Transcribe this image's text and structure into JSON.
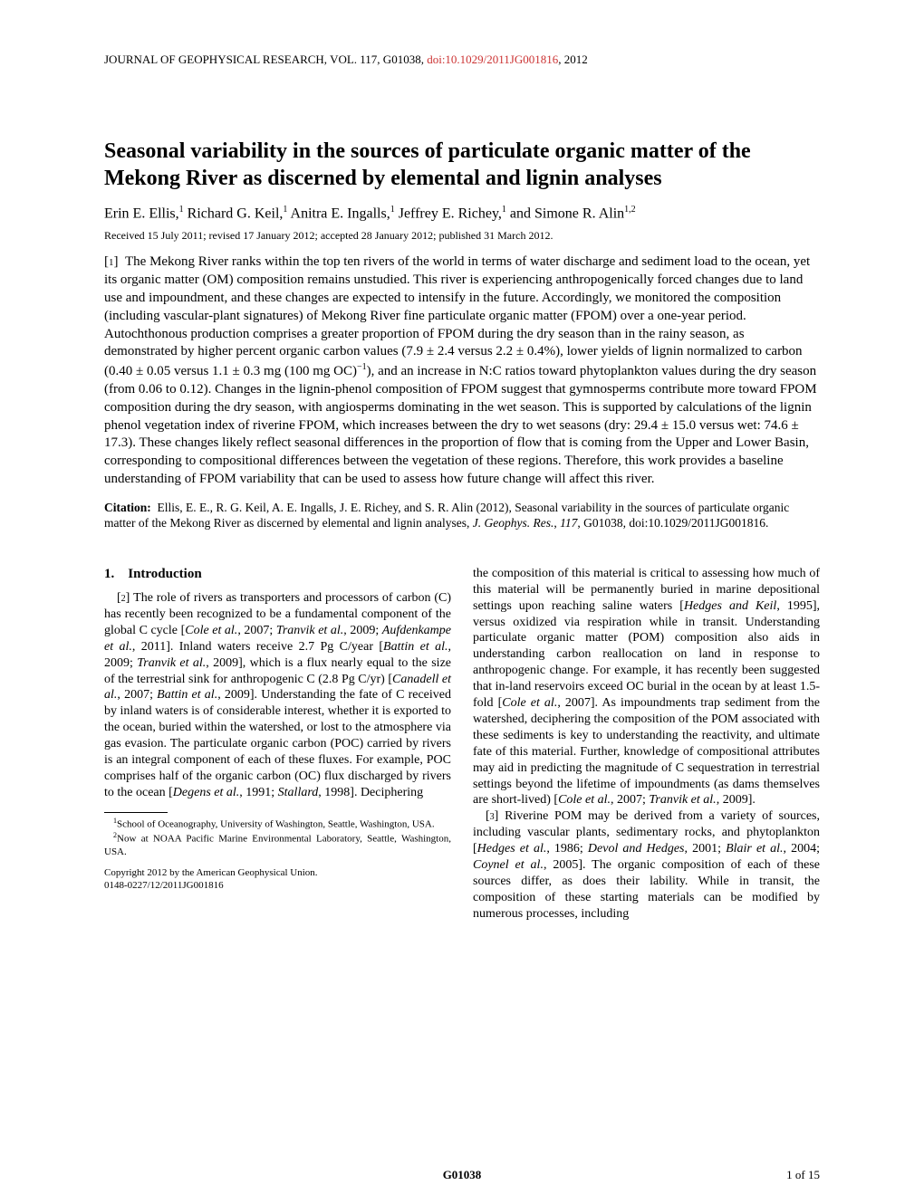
{
  "header": {
    "journal": "JOURNAL OF GEOPHYSICAL RESEARCH, VOL. 117, G01038, ",
    "doi": "doi:10.1029/2011JG001816",
    "year": ", 2012"
  },
  "title": "Seasonal variability in the sources of particulate organic matter of the Mekong River as discerned by elemental and lignin analyses",
  "authors_html": "Erin E. Ellis,<span class='sup'>1</span> Richard G. Keil,<span class='sup'>1</span> Anitra E. Ingalls,<span class='sup'>1</span> Jeffrey E. Richey,<span class='sup'>1</span> and Simone R. Alin<span class='sup'>1,2</span>",
  "dates": "Received 15 July 2011; revised 17 January 2012; accepted 28 January 2012; published 31 March 2012.",
  "abstract_html": "[<span class='para-num'>1</span>]&nbsp;&nbsp;The Mekong River ranks within the top ten rivers of the world in terms of water discharge and sediment load to the ocean, yet its organic matter (OM) composition remains unstudied. This river is experiencing anthropogenically forced changes due to land use and impoundment, and these changes are expected to intensify in the future. Accordingly, we monitored the composition (including vascular-plant signatures) of Mekong River fine particulate organic matter (FPOM) over a one-year period. Autochthonous production comprises a greater proportion of FPOM during the dry season than in the rainy season, as demonstrated by higher percent organic carbon values (7.9 ± 2.4 versus 2.2 ± 0.4%), lower yields of lignin normalized to carbon (0.40 ± 0.05 versus 1.1 ± 0.3 mg (100 mg OC)<span class='sup'>−1</span>), and an increase in N:C ratios toward phytoplankton values during the dry season (from 0.06 to 0.12). Changes in the lignin-phenol composition of FPOM suggest that gymnosperms contribute more toward FPOM composition during the dry season, with angiosperms dominating in the wet season. This is supported by calculations of the lignin phenol vegetation index of riverine FPOM, which increases between the dry to wet seasons (dry: 29.4 ± 15.0 versus wet: 74.6 ± 17.3). These changes likely reflect seasonal differences in the proportion of flow that is coming from the Upper and Lower Basin, corresponding to compositional differences between the vegetation of these regions. Therefore, this work provides a baseline understanding of FPOM variability that can be used to assess how future change will affect this river.",
  "citation": {
    "label": "Citation:",
    "text_html": "&nbsp;&nbsp;Ellis, E. E., R. G. Keil, A. E. Ingalls, J. E. Richey, and S. R. Alin (2012), Seasonal variability in the sources of particulate organic matter of the Mekong River as discerned by elemental and lignin analyses, <span class='jname'>J. Geophys. Res.</span>, <span class='vol'>117</span>, G01038, doi:10.1029/2011JG001816."
  },
  "left_column": {
    "heading": "1. Introduction",
    "para_html": "[<span class='pnum'>2</span>]&nbsp;The role of rivers as transporters and processors of carbon (C) has recently been recognized to be a fundamental component of the global C cycle [<span class='ital'>Cole et al.</span>, 2007; <span class='ital'>Tranvik et al.</span>, 2009; <span class='ital'>Aufdenkampe et al.</span>, 2011]. Inland waters receive 2.7 Pg C/year [<span class='ital'>Battin et al.</span>, 2009; <span class='ital'>Tranvik et al.</span>, 2009], which is a flux nearly equal to the size of the terrestrial sink for anthropogenic C (2.8 Pg C/yr) [<span class='ital'>Canadell et al.</span>, 2007; <span class='ital'>Battin et al.</span>, 2009]. Understanding the fate of C received by inland waters is of considerable interest, whether it is exported to the ocean, buried within the watershed, or lost to the atmosphere via gas evasion. The particulate organic carbon (POC) carried by rivers is an integral component of each of these fluxes. For example, POC comprises half of the organic carbon (OC) flux discharged by rivers to the ocean [<span class='ital'>Degens et al.</span>, 1991; <span class='ital'>Stallard</span>, 1998]. Deciphering",
    "footnote1_html": "<span class='fnum'>1</span>School of Oceanography, University of Washington, Seattle, Washington, USA.",
    "footnote2_html": "<span class='fnum'>2</span>Now at NOAA Pacific Marine Environmental Laboratory, Seattle, Washington, USA.",
    "copyright1": "Copyright 2012 by the American Geophysical Union.",
    "copyright2": "0148-0227/12/2011JG001816"
  },
  "right_column": {
    "para1_html": "the composition of this material is critical to assessing how much of this material will be permanently buried in marine depositional settings upon reaching saline waters [<span class='ital'>Hedges and Keil</span>, 1995], versus oxidized via respiration while in transit. Understanding particulate organic matter (POM) composition also aids in understanding carbon reallocation on land in response to anthropogenic change. For example, it has recently been suggested that in-land reservoirs exceed OC burial in the ocean by at least 1.5-fold [<span class='ital'>Cole et al.</span>, 2007]. As impoundments trap sediment from the watershed, deciphering the composition of the POM associated with these sediments is key to understanding the reactivity, and ultimate fate of this material. Further, knowledge of compositional attributes may aid in predicting the magnitude of C sequestration in terrestrial settings beyond the lifetime of impoundments (as dams themselves are short-lived) [<span class='ital'>Cole et al.</span>, 2007; <span class='ital'>Tranvik et al.</span>, 2009].",
    "para2_html": "[<span class='pnum'>3</span>]&nbsp;Riverine POM may be derived from a variety of sources, including vascular plants, sedimentary rocks, and phytoplankton [<span class='ital'>Hedges et al.</span>, 1986; <span class='ital'>Devol and Hedges</span>, 2001; <span class='ital'>Blair et al.</span>, 2004; <span class='ital'>Coynel et al.</span>, 2005]. The organic composition of each of these sources differ, as does their lability. While in transit, the composition of these starting materials can be modified by numerous processes, including"
  },
  "footer": {
    "center": "G01038",
    "right": "1 of 15"
  }
}
